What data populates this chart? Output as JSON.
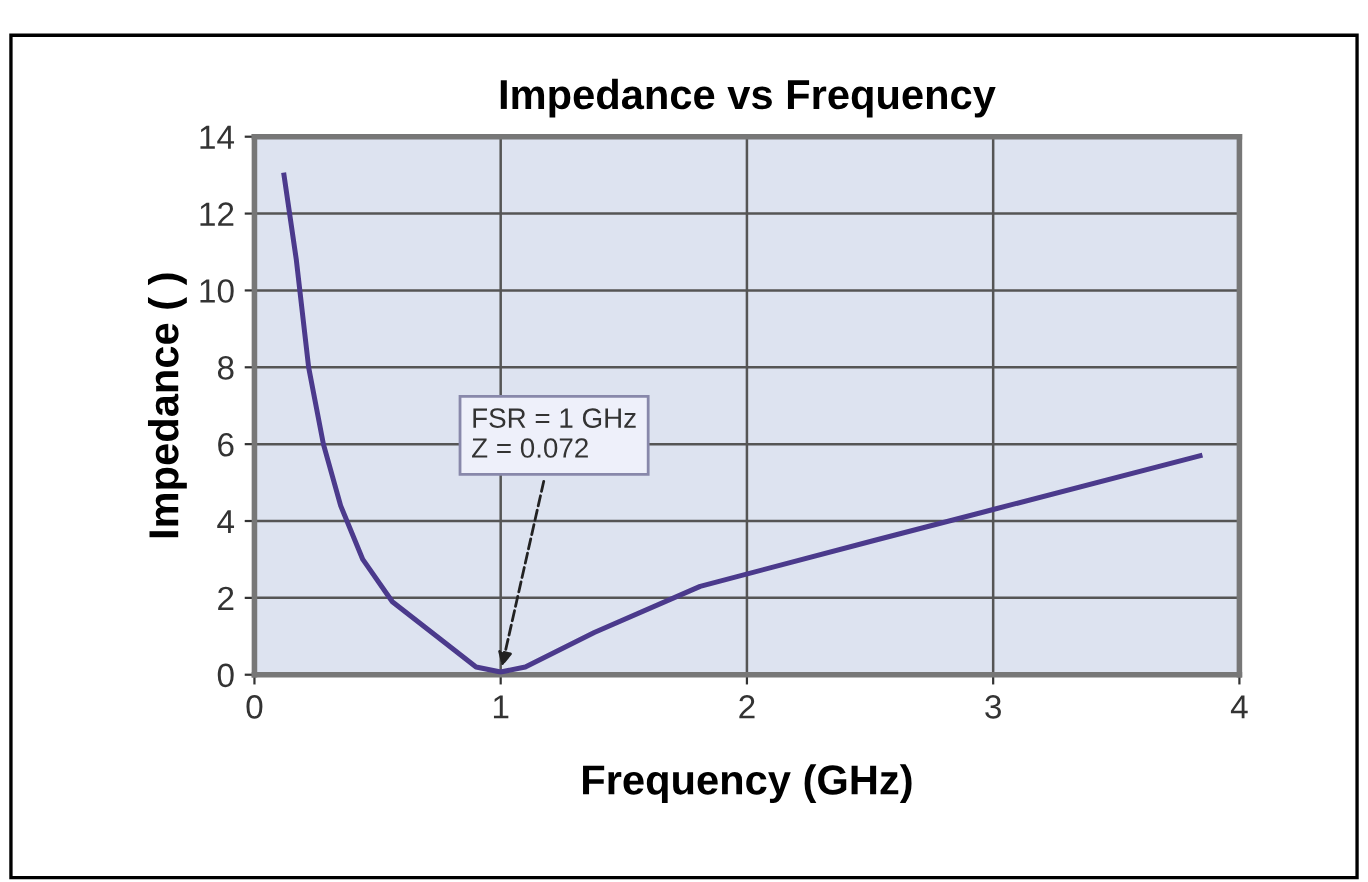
{
  "chart_data": {
    "type": "line",
    "title": "Impedance vs Frequency",
    "xlabel": "Frequency (GHz)",
    "ylabel": "Impedance ( )",
    "x": [
      0.12,
      0.17,
      0.22,
      0.28,
      0.35,
      0.44,
      0.56,
      0.74,
      0.9,
      1.0,
      1.1,
      1.38,
      1.81,
      2.52,
      3.0,
      3.84
    ],
    "series": [
      {
        "color": "#4b3a8c",
        "values": [
          13.0,
          10.8,
          8.0,
          6.0,
          4.4,
          3.0,
          1.9,
          1.0,
          0.2,
          0.072,
          0.2,
          1.1,
          2.3,
          3.5,
          4.3,
          5.7
        ]
      }
    ],
    "annotations": [
      {
        "text": "FSR = 1 GHz\nZ = 0.072",
        "x": 1.0,
        "y": 0.072
      }
    ],
    "xlim": [
      0,
      4
    ],
    "ylim": [
      0,
      14
    ],
    "xticks": [
      0,
      1,
      2,
      3,
      4
    ],
    "yticks": [
      0,
      2,
      4,
      6,
      8,
      10,
      12,
      14
    ],
    "grid": true,
    "marker": "none",
    "line_style": "solid"
  }
}
